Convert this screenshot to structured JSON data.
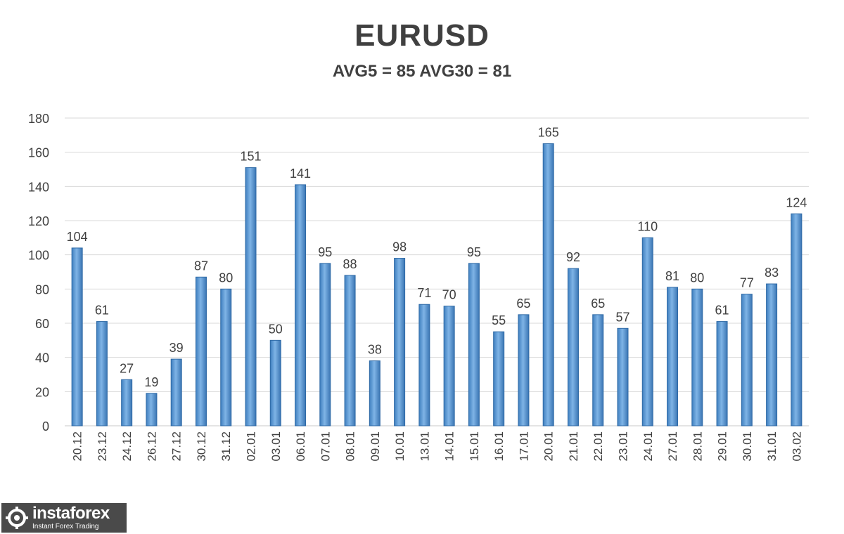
{
  "chart_data": {
    "type": "bar",
    "title": "EURUSD",
    "subtitle": "AVG5 = 85 AVG30 = 81",
    "categories": [
      "20.12",
      "23.12",
      "24.12",
      "26.12",
      "27.12",
      "30.12",
      "31.12",
      "02.01",
      "03.01",
      "06.01",
      "07.01",
      "08.01",
      "09.01",
      "10.01",
      "13.01",
      "14.01",
      "15.01",
      "16.01",
      "17.01",
      "20.01",
      "21.01",
      "22.01",
      "23.01",
      "24.01",
      "27.01",
      "28.01",
      "29.01",
      "30.01",
      "31.01",
      "03.02"
    ],
    "values": [
      104,
      61,
      27,
      19,
      39,
      87,
      80,
      151,
      50,
      141,
      95,
      88,
      38,
      98,
      71,
      70,
      95,
      55,
      65,
      165,
      92,
      65,
      57,
      110,
      81,
      80,
      61,
      77,
      83,
      124
    ],
    "ylim": [
      0,
      180
    ],
    "yticks": [
      0,
      20,
      40,
      60,
      80,
      100,
      120,
      140,
      160,
      180
    ],
    "grid": true,
    "data_labels": true,
    "bar_color": "#5b9bd5"
  },
  "brand": {
    "name": "instaforex",
    "tagline": "Instant Forex Trading"
  }
}
